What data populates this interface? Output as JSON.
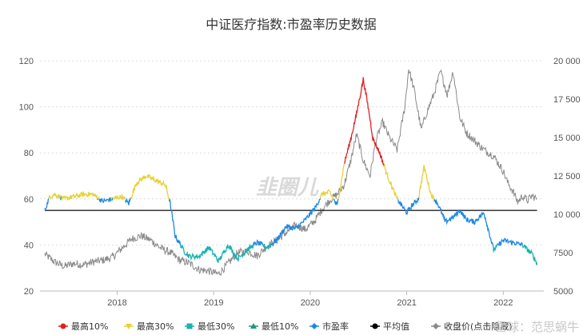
{
  "chart_data": {
    "type": "line",
    "title": "中证医疗指数:市盈率历史数据",
    "x_ticks": [
      "2018",
      "2019",
      "2020",
      "2021",
      "2022"
    ],
    "y_left": {
      "ticks": [
        20,
        40,
        60,
        80,
        100,
        120
      ],
      "range": [
        20,
        120
      ]
    },
    "y_right": {
      "ticks": [
        "5000",
        "7500",
        "10 000",
        "12 500",
        "15 000",
        "17 500",
        "20 000"
      ],
      "range": [
        5000,
        20000
      ]
    },
    "average_value": 55,
    "legend": [
      {
        "label": "最高10%",
        "color": "#e02020",
        "marker": "circle"
      },
      {
        "label": "最高30%",
        "color": "#e6d23a",
        "marker": "triangle-down"
      },
      {
        "label": "最低30%",
        "color": "#19b3b0",
        "marker": "square"
      },
      {
        "label": "最低10%",
        "color": "#1a9a7a",
        "marker": "triangle-up"
      },
      {
        "label": "市盈率",
        "color": "#1e88e5",
        "marker": "diamond"
      },
      {
        "label": "平均值",
        "color": "#000000",
        "marker": "circle"
      },
      {
        "label": "收盘价(点击隐藏)",
        "color": "#8a8a8a",
        "marker": "diamond"
      }
    ],
    "pe_series": {
      "name": "市盈率",
      "x": [
        2017.25,
        2017.3,
        2017.35,
        2017.45,
        2017.55,
        2017.65,
        2017.75,
        2017.85,
        2017.95,
        2018.05,
        2018.12,
        2018.2,
        2018.3,
        2018.4,
        2018.5,
        2018.55,
        2018.6,
        2018.7,
        2018.75,
        2018.85,
        2018.95,
        2019.05,
        2019.15,
        2019.25,
        2019.35,
        2019.45,
        2019.55,
        2019.65,
        2019.75,
        2019.85,
        2019.95,
        2020.05,
        2020.12,
        2020.2,
        2020.28,
        2020.35,
        2020.42,
        2020.48,
        2020.55,
        2020.6,
        2020.65,
        2020.72,
        2020.8,
        2020.9,
        2021.0,
        2021.05,
        2021.12,
        2021.18,
        2021.25,
        2021.32,
        2021.4,
        2021.48,
        2021.55,
        2021.62,
        2021.7,
        2021.8,
        2021.9,
        2022.0,
        2022.1,
        2022.2,
        2022.3,
        2022.35
      ],
      "values": [
        55,
        61,
        62,
        60,
        61,
        62,
        62,
        59,
        60,
        61,
        58,
        67,
        70,
        68,
        66,
        58,
        44,
        37,
        35,
        35,
        39,
        33,
        40,
        34,
        38,
        41,
        39,
        42,
        48,
        47,
        51,
        56,
        62,
        63,
        57,
        75,
        86,
        97,
        112,
        100,
        86,
        80,
        70,
        60,
        54,
        57,
        60,
        74,
        62,
        58,
        50,
        52,
        55,
        51,
        50,
        54,
        38,
        42,
        41,
        40,
        36,
        32
      ]
    },
    "price_series": {
      "name": "收盘价(点击隐藏)",
      "x": [
        2017.25,
        2017.35,
        2017.45,
        2017.55,
        2017.65,
        2017.75,
        2017.85,
        2017.95,
        2018.05,
        2018.15,
        2018.25,
        2018.35,
        2018.45,
        2018.55,
        2018.65,
        2018.75,
        2018.85,
        2018.95,
        2019.05,
        2019.15,
        2019.25,
        2019.35,
        2019.45,
        2019.55,
        2019.65,
        2019.75,
        2019.85,
        2019.95,
        2020.05,
        2020.12,
        2020.2,
        2020.28,
        2020.35,
        2020.42,
        2020.48,
        2020.55,
        2020.62,
        2020.68,
        2020.75,
        2020.82,
        2020.9,
        2020.98,
        2021.02,
        2021.08,
        2021.15,
        2021.2,
        2021.28,
        2021.35,
        2021.42,
        2021.48,
        2021.55,
        2021.62,
        2021.7,
        2021.8,
        2021.9,
        2022.0,
        2022.05,
        2022.1,
        2022.15,
        2022.2,
        2022.25,
        2022.3,
        2022.35
      ],
      "values": [
        7400,
        6900,
        6600,
        6800,
        6700,
        6900,
        7000,
        7200,
        7800,
        8400,
        8600,
        8300,
        7800,
        7500,
        7000,
        6800,
        6400,
        6300,
        6100,
        6800,
        7500,
        7600,
        7300,
        7900,
        8300,
        8800,
        9300,
        9000,
        9600,
        10300,
        10900,
        11300,
        11900,
        13500,
        15200,
        13500,
        12500,
        14800,
        16000,
        15000,
        14200,
        17000,
        19500,
        18000,
        15500,
        16500,
        17800,
        19300,
        17800,
        19300,
        16300,
        15300,
        14800,
        14200,
        13800,
        12800,
        12000,
        11500,
        10800,
        11200,
        10900,
        11200,
        11000
      ]
    }
  },
  "watermark": {
    "logo": "韭圈儿",
    "footer": "雪球：范思蜗牛"
  }
}
